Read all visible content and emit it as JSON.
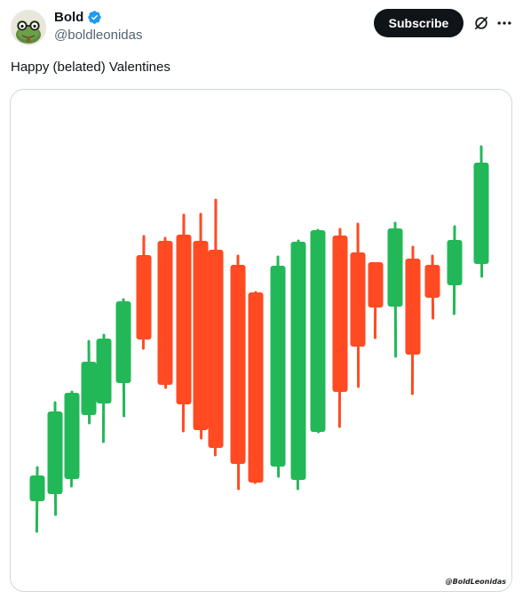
{
  "user": {
    "display_name": "Bold",
    "handle": "@boldleonidas",
    "verified": true,
    "verified_color": "#1d9bf0"
  },
  "header": {
    "subscribe_label": "Subscribe",
    "grok_icon": "grok-slash-icon",
    "more_icon": "more-dots-icon"
  },
  "tweet": {
    "text": "Happy (belated) Valentines"
  },
  "media": {
    "watermark": "@BoldLeonidas",
    "colors": {
      "up": "#22b857",
      "down": "#ff4a22"
    }
  }
}
